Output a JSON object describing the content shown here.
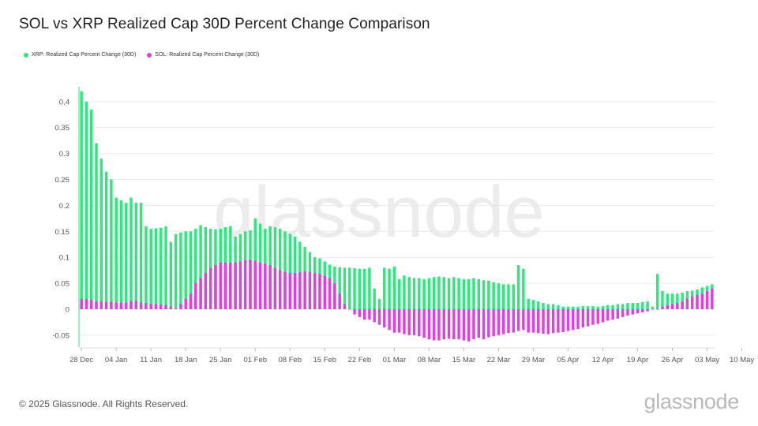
{
  "title": "SOL vs XRP Realized Cap 30D Percent Change Comparison",
  "footer": "© 2025 Glassnode. All Rights Reserved.",
  "brand": "glassnode",
  "watermark": "glassnode",
  "colors": {
    "xrp": "#2ee87e",
    "sol": "#e040e0",
    "grid": "#ececec",
    "axis": "#555555",
    "watermark": "#e6e6e6"
  },
  "chart_data": {
    "type": "bar",
    "title": "SOL vs XRP Realized Cap 30D Percent Change Comparison",
    "xlabel": "",
    "ylabel": "",
    "ylim": [
      -0.07,
      0.43
    ],
    "y_ticks": [
      "-0.05",
      "0",
      "0.05",
      "0.1",
      "0.15",
      "0.2",
      "0.25",
      "0.3",
      "0.35",
      "0.4"
    ],
    "x_tick_labels": [
      "28 Dec",
      "04 Jan",
      "11 Jan",
      "18 Jan",
      "25 Jan",
      "01 Feb",
      "08 Feb",
      "15 Feb",
      "22 Feb",
      "01 Mar",
      "08 Mar",
      "15 Mar",
      "22 Mar",
      "29 Mar",
      "05 Apr",
      "12 Apr",
      "19 Apr",
      "26 Apr",
      "03 May",
      "10 May"
    ],
    "start_date": "2024-12-28",
    "grid": true,
    "legend_position": "top-left",
    "series": [
      {
        "name": "XRP: Realized Cap Percent Change (30D)",
        "values": [
          0.42,
          0.4,
          0.385,
          0.32,
          0.29,
          0.265,
          0.25,
          0.215,
          0.21,
          0.205,
          0.215,
          0.205,
          0.205,
          0.16,
          0.155,
          0.156,
          0.157,
          0.16,
          0.13,
          0.145,
          0.148,
          0.15,
          0.15,
          0.155,
          0.162,
          0.158,
          0.155,
          0.154,
          0.155,
          0.158,
          0.16,
          0.14,
          0.145,
          0.15,
          0.152,
          0.175,
          0.165,
          0.155,
          0.16,
          0.158,
          0.155,
          0.15,
          0.145,
          0.14,
          0.13,
          0.12,
          0.11,
          0.1,
          0.098,
          0.092,
          0.086,
          0.082,
          0.081,
          0.08,
          0.08,
          0.079,
          0.078,
          0.078,
          0.08,
          0.04,
          0.02,
          0.08,
          0.078,
          0.082,
          0.058,
          0.065,
          0.062,
          0.06,
          0.06,
          0.058,
          0.06,
          0.062,
          0.063,
          0.062,
          0.06,
          0.062,
          0.06,
          0.058,
          0.058,
          0.06,
          0.058,
          0.056,
          0.055,
          0.052,
          0.05,
          0.048,
          0.048,
          0.048,
          0.085,
          0.078,
          0.02,
          0.018,
          0.015,
          0.012,
          0.01,
          0.01,
          0.008,
          0.005,
          0.005,
          0.005,
          0.005,
          0.006,
          0.006,
          0.006,
          0.005,
          0.006,
          0.008,
          0.008,
          0.01,
          0.01,
          0.012,
          0.012,
          0.012,
          0.014,
          0.015,
          0.005,
          0.068,
          0.035,
          0.03,
          0.03,
          0.03,
          0.032,
          0.035,
          0.036,
          0.038,
          0.042,
          0.045,
          0.048
        ]
      },
      {
        "name": "SOL: Realized Cap Percent Change (30D)",
        "values": [
          0.02,
          0.02,
          0.018,
          0.015,
          0.015,
          0.014,
          0.014,
          0.013,
          0.013,
          0.013,
          0.016,
          0.016,
          0.013,
          0.012,
          0.01,
          0.01,
          0.009,
          0.008,
          0.005,
          0.002,
          0.01,
          0.02,
          0.03,
          0.05,
          0.06,
          0.07,
          0.08,
          0.085,
          0.09,
          0.09,
          0.09,
          0.09,
          0.092,
          0.095,
          0.095,
          0.093,
          0.09,
          0.088,
          0.085,
          0.08,
          0.075,
          0.072,
          0.07,
          0.07,
          0.072,
          0.073,
          0.072,
          0.07,
          0.068,
          0.065,
          0.06,
          0.05,
          0.03,
          0.01,
          0.0,
          -0.01,
          -0.015,
          -0.02,
          -0.02,
          -0.025,
          -0.03,
          -0.035,
          -0.04,
          -0.045,
          -0.045,
          -0.048,
          -0.05,
          -0.05,
          -0.052,
          -0.055,
          -0.058,
          -0.06,
          -0.06,
          -0.058,
          -0.057,
          -0.058,
          -0.058,
          -0.06,
          -0.062,
          -0.058,
          -0.055,
          -0.058,
          -0.054,
          -0.052,
          -0.05,
          -0.048,
          -0.046,
          -0.045,
          -0.042,
          -0.04,
          -0.045,
          -0.045,
          -0.046,
          -0.047,
          -0.048,
          -0.046,
          -0.045,
          -0.044,
          -0.042,
          -0.04,
          -0.038,
          -0.035,
          -0.033,
          -0.03,
          -0.028,
          -0.025,
          -0.022,
          -0.02,
          -0.018,
          -0.015,
          -0.012,
          -0.01,
          -0.008,
          -0.006,
          -0.004,
          0.0,
          0.0,
          0.005,
          0.008,
          0.01,
          0.012,
          0.015,
          0.02,
          0.025,
          0.028,
          0.03,
          0.035,
          0.04,
          0.045,
          0.048
        ]
      }
    ]
  }
}
